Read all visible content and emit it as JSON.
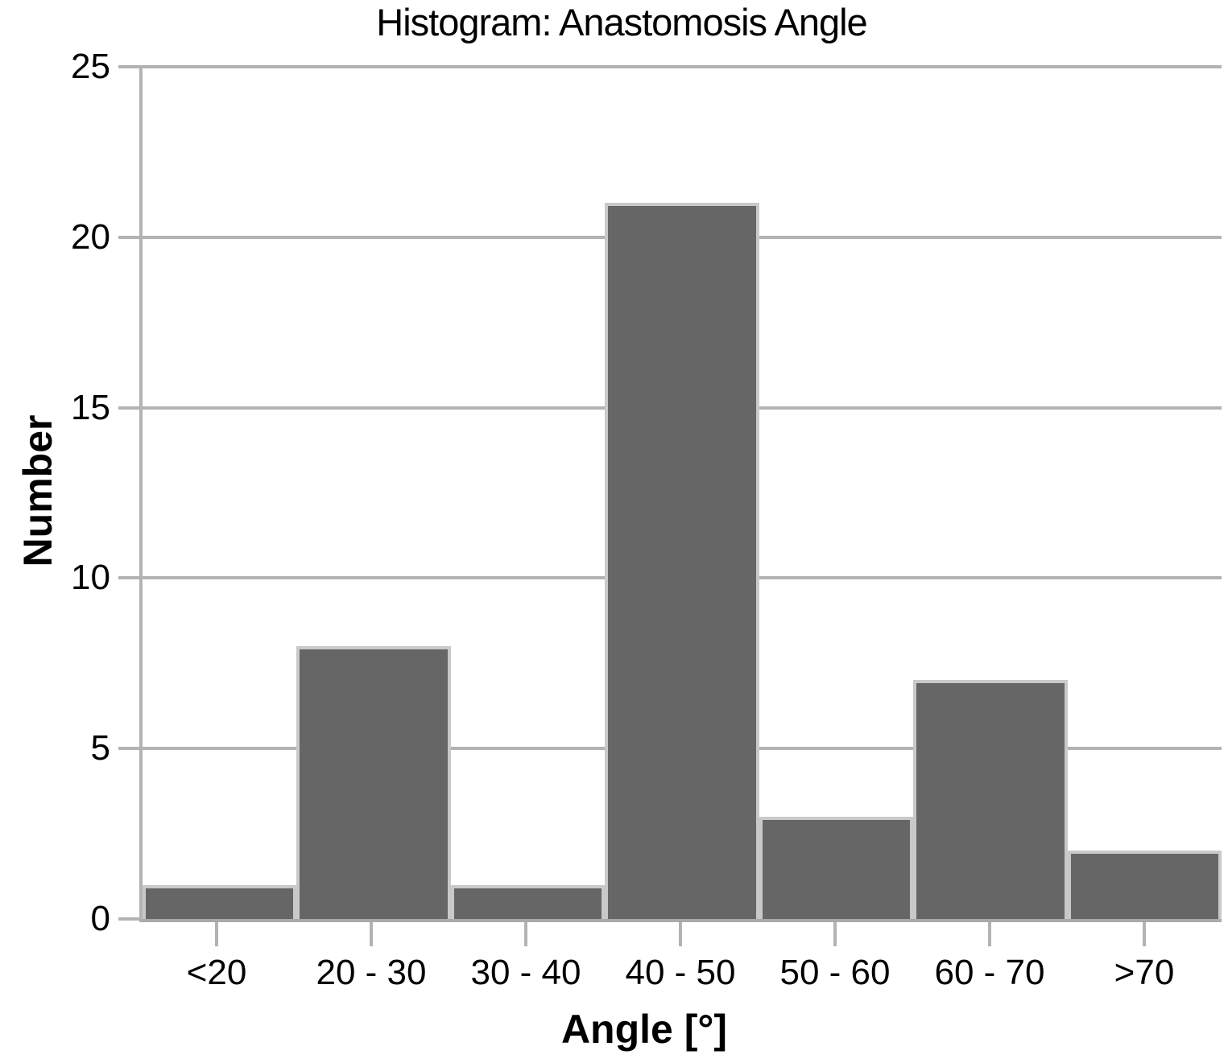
{
  "chart_data": {
    "type": "bar",
    "title": "Histogram: Anastomosis Angle",
    "xlabel": "Angle [°]",
    "ylabel": "Number",
    "categories": [
      "<20",
      "20 - 30",
      "30 - 40",
      "40 - 50",
      "50 - 60",
      "60 - 70",
      ">70"
    ],
    "values": [
      1,
      8,
      1,
      21,
      3,
      7,
      2
    ],
    "ylim": [
      0,
      25
    ],
    "y_ticks": [
      0,
      5,
      10,
      15,
      20,
      25
    ],
    "grid": true,
    "legend_position": "none"
  },
  "colors": {
    "bar_fill": "#666666",
    "bar_border": "#c9c9c9",
    "gridline": "#b3b3b3",
    "axis_line": "#a9a9a9",
    "text": "#000000",
    "background": "#ffffff"
  }
}
